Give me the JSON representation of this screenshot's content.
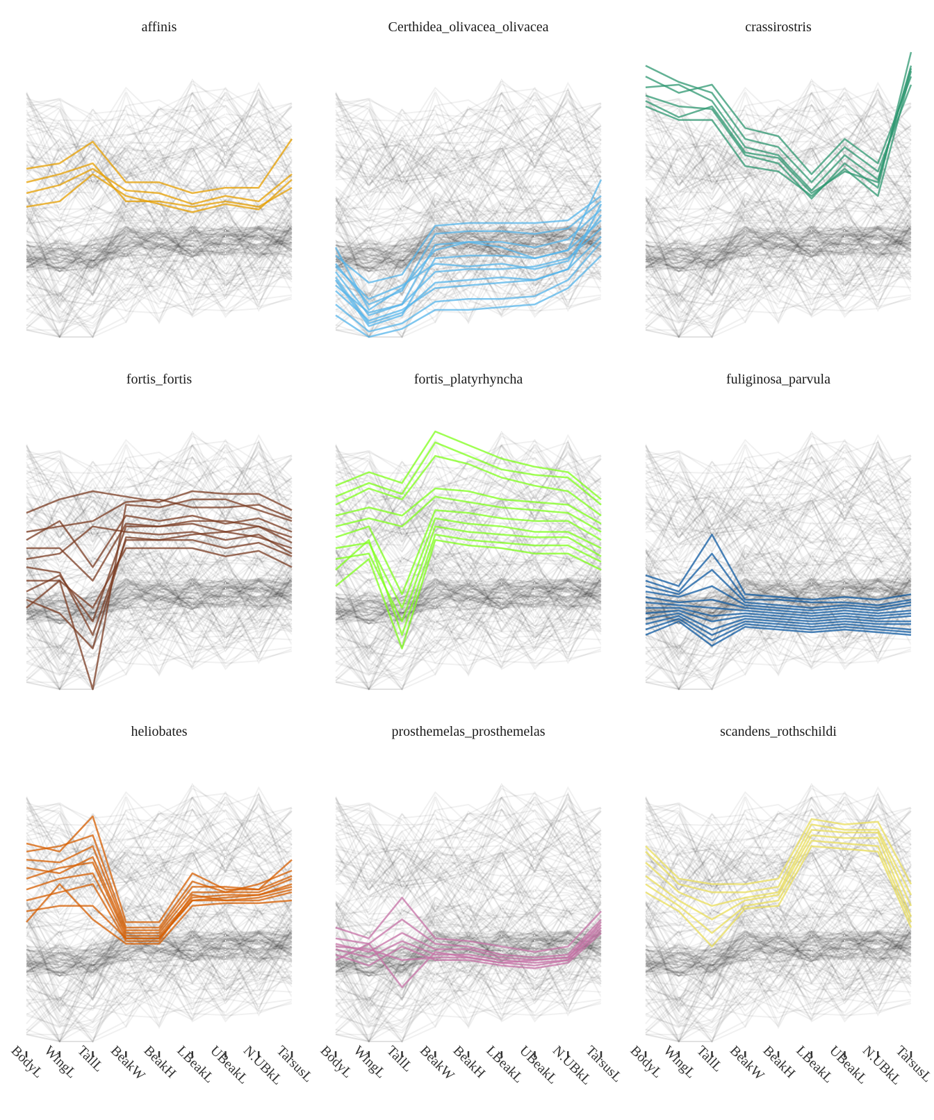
{
  "chart_data": {
    "type": "parallel-coordinates",
    "axes": [
      "BodyL",
      "WingL",
      "TailL",
      "BeakW",
      "BeakH",
      "LBeakL",
      "UBeakL",
      "N.UBkL",
      "TarsusL"
    ],
    "grid": false,
    "panels": [
      {
        "title": "affinis",
        "color": "#E69F00",
        "highlight": [
          [
            0.62,
            0.64,
            0.72,
            0.57,
            0.57,
            0.53,
            0.55,
            0.55,
            0.73
          ],
          [
            0.57,
            0.6,
            0.64,
            0.5,
            0.5,
            0.48,
            0.5,
            0.48,
            0.55
          ],
          [
            0.53,
            0.56,
            0.62,
            0.54,
            0.53,
            0.49,
            0.52,
            0.5,
            0.6
          ],
          [
            0.48,
            0.5,
            0.6,
            0.52,
            0.49,
            0.46,
            0.49,
            0.47,
            0.58
          ]
        ]
      },
      {
        "title": "Certhidea_olivacea_olivacea",
        "color": "#56B4E9",
        "highlight": [
          [
            0.3,
            0.2,
            0.23,
            0.41,
            0.42,
            0.42,
            0.42,
            0.43,
            0.52
          ],
          [
            0.27,
            0.12,
            0.17,
            0.38,
            0.39,
            0.39,
            0.38,
            0.4,
            0.5
          ],
          [
            0.24,
            0.08,
            0.12,
            0.34,
            0.35,
            0.35,
            0.33,
            0.36,
            0.47
          ],
          [
            0.21,
            0.04,
            0.08,
            0.29,
            0.3,
            0.3,
            0.29,
            0.32,
            0.43
          ],
          [
            0.19,
            0.09,
            0.12,
            0.24,
            0.25,
            0.25,
            0.26,
            0.29,
            0.4
          ],
          [
            0.17,
            0.06,
            0.1,
            0.18,
            0.19,
            0.2,
            0.21,
            0.25,
            0.37
          ],
          [
            0.12,
            0.02,
            0.05,
            0.13,
            0.14,
            0.14,
            0.15,
            0.21,
            0.35
          ],
          [
            0.08,
            0.0,
            0.03,
            0.1,
            0.1,
            0.11,
            0.12,
            0.18,
            0.3
          ],
          [
            0.33,
            0.1,
            0.18,
            0.32,
            0.35,
            0.33,
            0.29,
            0.32,
            0.58
          ],
          [
            0.26,
            0.14,
            0.19,
            0.27,
            0.26,
            0.27,
            0.25,
            0.28,
            0.45
          ],
          [
            0.22,
            0.05,
            0.09,
            0.2,
            0.21,
            0.22,
            0.21,
            0.25,
            0.49
          ]
        ]
      },
      {
        "title": "crassirostris",
        "color": "#2E9770",
        "highlight": [
          [
            1.0,
            0.94,
            0.9,
            0.73,
            0.7,
            0.57,
            0.7,
            0.61,
            0.93
          ],
          [
            0.96,
            0.9,
            0.93,
            0.77,
            0.74,
            0.6,
            0.73,
            0.64,
            0.96
          ],
          [
            0.92,
            0.93,
            0.87,
            0.7,
            0.67,
            0.54,
            0.67,
            0.58,
            0.99
          ],
          [
            0.89,
            0.85,
            0.84,
            0.67,
            0.64,
            0.51,
            0.64,
            0.55,
            1.05
          ],
          [
            0.87,
            0.81,
            0.85,
            0.68,
            0.66,
            0.53,
            0.61,
            0.57,
            1.0
          ],
          [
            0.85,
            0.8,
            0.8,
            0.63,
            0.61,
            0.52,
            0.62,
            0.52,
            0.98
          ]
        ]
      },
      {
        "title": "fortis_fortis",
        "color": "#7A3B22",
        "highlight": [
          [
            0.65,
            0.7,
            0.73,
            0.71,
            0.69,
            0.73,
            0.72,
            0.72,
            0.66
          ],
          [
            0.58,
            0.6,
            0.62,
            0.69,
            0.7,
            0.67,
            0.67,
            0.68,
            0.63
          ],
          [
            0.55,
            0.62,
            0.45,
            0.64,
            0.62,
            0.64,
            0.61,
            0.63,
            0.58
          ],
          [
            0.52,
            0.52,
            0.4,
            0.61,
            0.6,
            0.61,
            0.58,
            0.6,
            0.54
          ],
          [
            0.48,
            0.5,
            0.6,
            0.58,
            0.57,
            0.58,
            0.55,
            0.57,
            0.5
          ],
          [
            0.45,
            0.43,
            0.2,
            0.55,
            0.55,
            0.55,
            0.52,
            0.54,
            0.49
          ],
          [
            0.4,
            0.4,
            0.3,
            0.52,
            0.52,
            0.52,
            0.49,
            0.51,
            0.45
          ],
          [
            0.36,
            0.42,
            0.25,
            0.6,
            0.6,
            0.62,
            0.62,
            0.6,
            0.56
          ],
          [
            0.3,
            0.4,
            0.0,
            0.68,
            0.67,
            0.7,
            0.7,
            0.66,
            0.62
          ],
          [
            0.33,
            0.28,
            0.15,
            0.56,
            0.55,
            0.57,
            0.58,
            0.56,
            0.52
          ]
        ]
      },
      {
        "title": "fortis_platyrhyncha",
        "color": "#7FFF19",
        "highlight": [
          [
            0.75,
            0.8,
            0.76,
            0.95,
            0.9,
            0.85,
            0.82,
            0.8,
            0.7
          ],
          [
            0.71,
            0.76,
            0.72,
            0.91,
            0.86,
            0.81,
            0.79,
            0.78,
            0.68
          ],
          [
            0.68,
            0.74,
            0.7,
            0.86,
            0.83,
            0.78,
            0.75,
            0.73,
            0.64
          ],
          [
            0.64,
            0.67,
            0.64,
            0.74,
            0.73,
            0.7,
            0.69,
            0.68,
            0.61
          ],
          [
            0.6,
            0.63,
            0.6,
            0.71,
            0.69,
            0.67,
            0.66,
            0.65,
            0.58
          ],
          [
            0.56,
            0.6,
            0.35,
            0.66,
            0.65,
            0.63,
            0.62,
            0.62,
            0.55
          ],
          [
            0.52,
            0.54,
            0.3,
            0.63,
            0.61,
            0.6,
            0.58,
            0.58,
            0.52
          ],
          [
            0.48,
            0.5,
            0.25,
            0.6,
            0.58,
            0.57,
            0.56,
            0.56,
            0.49
          ],
          [
            0.44,
            0.55,
            0.2,
            0.57,
            0.55,
            0.54,
            0.53,
            0.53,
            0.47
          ],
          [
            0.38,
            0.48,
            0.15,
            0.55,
            0.53,
            0.52,
            0.5,
            0.5,
            0.44
          ]
        ]
      },
      {
        "title": "fuliginosa_parvula",
        "color": "#0D5AA1",
        "highlight": [
          [
            0.42,
            0.38,
            0.57,
            0.35,
            0.34,
            0.33,
            0.34,
            0.33,
            0.35
          ],
          [
            0.4,
            0.36,
            0.5,
            0.33,
            0.33,
            0.32,
            0.32,
            0.31,
            0.33
          ],
          [
            0.38,
            0.35,
            0.44,
            0.32,
            0.31,
            0.3,
            0.31,
            0.3,
            0.32
          ],
          [
            0.36,
            0.34,
            0.38,
            0.31,
            0.3,
            0.29,
            0.3,
            0.29,
            0.31
          ],
          [
            0.34,
            0.32,
            0.33,
            0.3,
            0.29,
            0.28,
            0.29,
            0.28,
            0.29
          ],
          [
            0.32,
            0.31,
            0.3,
            0.29,
            0.28,
            0.27,
            0.28,
            0.27,
            0.28
          ],
          [
            0.3,
            0.3,
            0.27,
            0.28,
            0.27,
            0.26,
            0.27,
            0.26,
            0.27
          ],
          [
            0.28,
            0.29,
            0.25,
            0.27,
            0.26,
            0.25,
            0.26,
            0.25,
            0.25
          ],
          [
            0.26,
            0.28,
            0.22,
            0.26,
            0.25,
            0.24,
            0.25,
            0.24,
            0.24
          ],
          [
            0.24,
            0.27,
            0.2,
            0.25,
            0.24,
            0.23,
            0.24,
            0.23,
            0.22
          ],
          [
            0.22,
            0.26,
            0.18,
            0.24,
            0.23,
            0.22,
            0.23,
            0.22,
            0.21
          ],
          [
            0.2,
            0.25,
            0.16,
            0.23,
            0.22,
            0.21,
            0.22,
            0.21,
            0.2
          ]
        ]
      },
      {
        "title": "heliobates",
        "color": "#D55E00",
        "highlight": [
          [
            0.73,
            0.7,
            0.83,
            0.44,
            0.44,
            0.62,
            0.56,
            0.56,
            0.67
          ],
          [
            0.7,
            0.72,
            0.76,
            0.42,
            0.42,
            0.59,
            0.55,
            0.58,
            0.63
          ],
          [
            0.67,
            0.66,
            0.72,
            0.41,
            0.41,
            0.57,
            0.57,
            0.56,
            0.61
          ],
          [
            0.64,
            0.62,
            0.68,
            0.4,
            0.4,
            0.55,
            0.55,
            0.55,
            0.6
          ],
          [
            0.6,
            0.64,
            0.66,
            0.39,
            0.39,
            0.53,
            0.54,
            0.54,
            0.58
          ],
          [
            0.56,
            0.6,
            0.62,
            0.38,
            0.38,
            0.52,
            0.52,
            0.53,
            0.56
          ],
          [
            0.52,
            0.55,
            0.58,
            0.37,
            0.37,
            0.54,
            0.52,
            0.52,
            0.55
          ],
          [
            0.44,
            0.58,
            0.45,
            0.36,
            0.36,
            0.5,
            0.51,
            0.51,
            0.52
          ],
          [
            0.48,
            0.5,
            0.5,
            0.38,
            0.38,
            0.52,
            0.53,
            0.54,
            0.57
          ]
        ]
      },
      {
        "title": "prosthemelas_prosthemelas",
        "color": "#C670A6",
        "highlight": [
          [
            0.42,
            0.38,
            0.53,
            0.38,
            0.37,
            0.35,
            0.33,
            0.35,
            0.48
          ],
          [
            0.38,
            0.36,
            0.45,
            0.36,
            0.35,
            0.32,
            0.31,
            0.32,
            0.45
          ],
          [
            0.36,
            0.33,
            0.4,
            0.34,
            0.34,
            0.31,
            0.3,
            0.31,
            0.43
          ],
          [
            0.34,
            0.31,
            0.37,
            0.32,
            0.32,
            0.3,
            0.29,
            0.3,
            0.41
          ],
          [
            0.32,
            0.28,
            0.35,
            0.3,
            0.3,
            0.28,
            0.27,
            0.29,
            0.4
          ],
          [
            0.3,
            0.36,
            0.2,
            0.33,
            0.31,
            0.29,
            0.3,
            0.31,
            0.44
          ],
          [
            0.35,
            0.34,
            0.3,
            0.31,
            0.31,
            0.29,
            0.28,
            0.3,
            0.42
          ]
        ]
      },
      {
        "title": "scandens_rothschildi",
        "color": "#E9DE5A",
        "highlight": [
          [
            0.72,
            0.6,
            0.58,
            0.58,
            0.6,
            0.82,
            0.8,
            0.81,
            0.58
          ],
          [
            0.7,
            0.58,
            0.55,
            0.55,
            0.57,
            0.8,
            0.78,
            0.78,
            0.54
          ],
          [
            0.66,
            0.55,
            0.5,
            0.53,
            0.55,
            0.78,
            0.77,
            0.77,
            0.5
          ],
          [
            0.61,
            0.52,
            0.45,
            0.52,
            0.54,
            0.76,
            0.75,
            0.75,
            0.46
          ],
          [
            0.58,
            0.5,
            0.4,
            0.5,
            0.52,
            0.74,
            0.73,
            0.72,
            0.44
          ],
          [
            0.55,
            0.48,
            0.35,
            0.49,
            0.5,
            0.72,
            0.71,
            0.7,
            0.42
          ]
        ]
      }
    ]
  }
}
